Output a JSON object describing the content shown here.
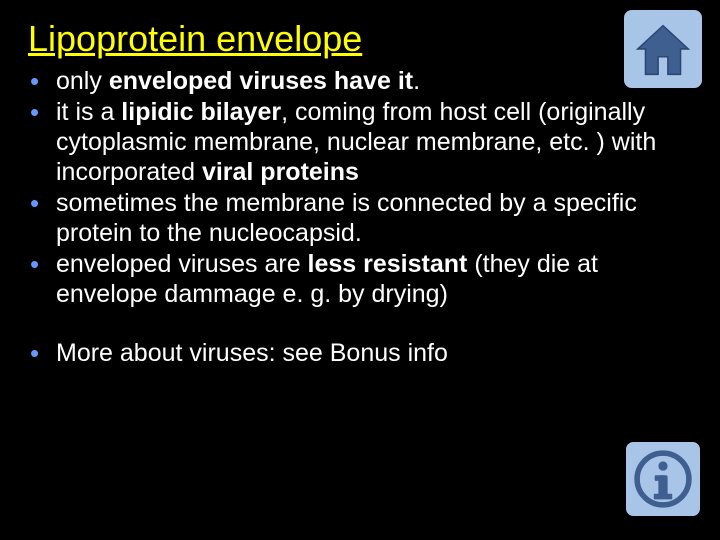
{
  "title": "Lipoprotein envelope",
  "bullets": [
    {
      "segments": [
        {
          "text": "only ",
          "bold": false
        },
        {
          "text": "enveloped viruses have it",
          "bold": true
        },
        {
          "text": ".",
          "bold": false
        }
      ]
    },
    {
      "segments": [
        {
          "text": "it is a ",
          "bold": false
        },
        {
          "text": "lipidic bilayer",
          "bold": true
        },
        {
          "text": ", coming from host cell (originally cytoplasmic membrane, nuclear membrane, etc. ) with incorporated ",
          "bold": false
        },
        {
          "text": "viral proteins",
          "bold": true
        }
      ]
    },
    {
      "segments": [
        {
          "text": "sometimes the membrane is connected by a specific protein to the nucleocapsid.",
          "bold": false
        }
      ]
    },
    {
      "segments": [
        {
          "text": "enveloped viruses are ",
          "bold": false
        },
        {
          "text": "less resistant ",
          "bold": true
        },
        {
          "text": "(they die at envelope dammage e. g. by drying)",
          "bold": false
        }
      ]
    }
  ],
  "bullets2": [
    {
      "segments": [
        {
          "text": "More about viruses: see Bonus info",
          "bold": false
        }
      ]
    }
  ],
  "colors": {
    "background": "#000000",
    "title": "#ffff00",
    "text": "#ffffff",
    "bullet": "#6699ff",
    "home_icon_bg": "#a8c5e8",
    "home_icon_fg": "#3a5a8a",
    "info_icon_bg": "#a8c5e8",
    "info_icon_fg": "#3a5a8a"
  },
  "fonts": {
    "title_size": 36,
    "body_size": 25,
    "family": "Verdana"
  },
  "icons": {
    "home": "home-icon",
    "info": "info-icon"
  }
}
